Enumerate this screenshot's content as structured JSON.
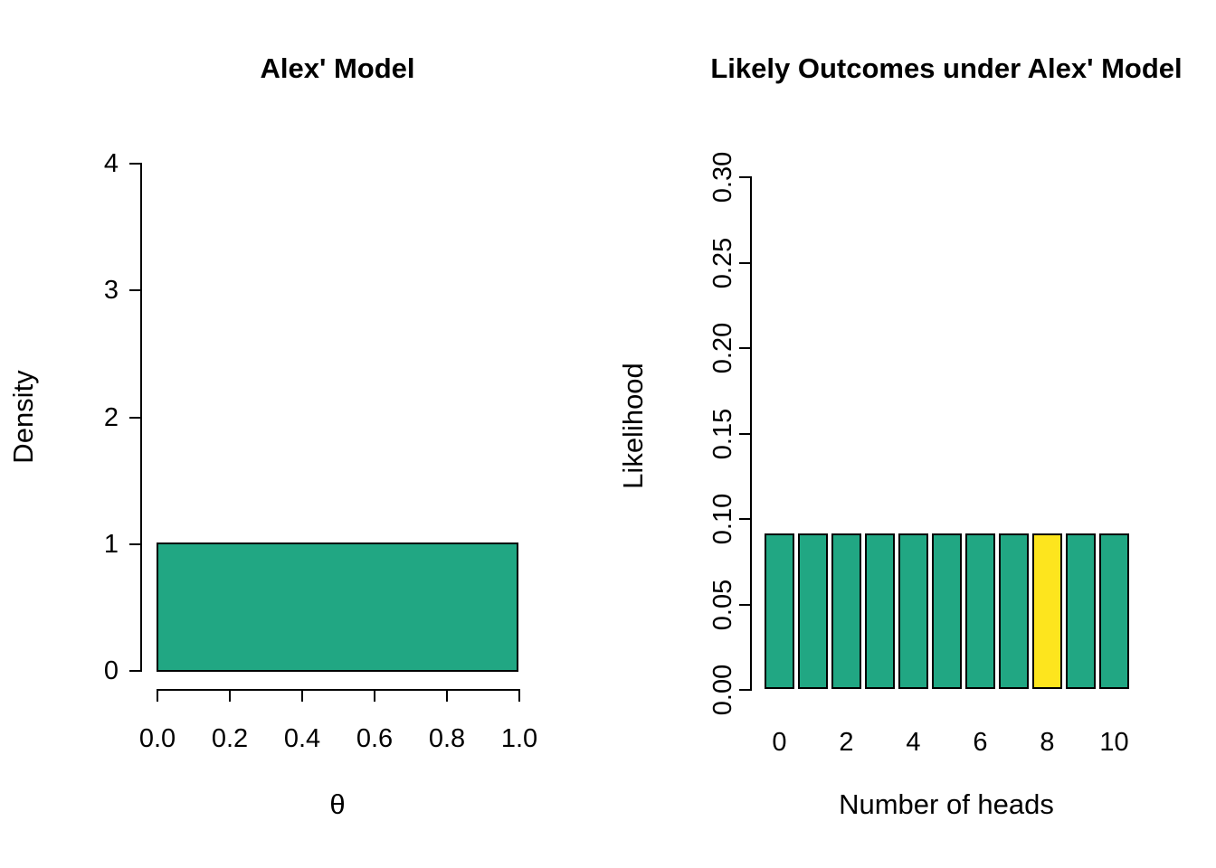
{
  "page_background": "#ffffff",
  "chart_data": [
    {
      "type": "area",
      "title": "Alex' Model",
      "xlabel": "θ",
      "ylabel": "Density",
      "xlim": [
        0.0,
        1.0
      ],
      "ylim": [
        0,
        4
      ],
      "x_ticks": [
        0.0,
        0.2,
        0.4,
        0.6,
        0.8,
        1.0
      ],
      "x_tick_labels": [
        "0.0",
        "0.2",
        "0.4",
        "0.6",
        "0.8",
        "1.0"
      ],
      "y_ticks": [
        0,
        1,
        2,
        3,
        4
      ],
      "y_tick_labels": [
        "0",
        "1",
        "2",
        "3",
        "4"
      ],
      "grid": false,
      "legend": "none",
      "segments": [
        {
          "x0": 0.0,
          "x1": 1.0,
          "y": 1.0
        }
      ],
      "fill_color": "#21A783",
      "border_color": "#000000",
      "description": "Uniform(0,1) prior density: flat at 1 over [0,1]"
    },
    {
      "type": "bar",
      "title": "Likely Outcomes under Alex' Model",
      "xlabel": "Number of heads",
      "ylabel": "Likelihood",
      "categories": [
        0,
        1,
        2,
        3,
        4,
        5,
        6,
        7,
        8,
        9,
        10
      ],
      "values": [
        0.0909,
        0.0909,
        0.0909,
        0.0909,
        0.0909,
        0.0909,
        0.0909,
        0.0909,
        0.0909,
        0.0909,
        0.0909
      ],
      "highlight_index": 8,
      "bar_color": "#21A783",
      "highlight_color": "#FDE51E",
      "border_color": "#000000",
      "ylim": [
        0.0,
        0.3
      ],
      "y_ticks": [
        0.0,
        0.05,
        0.1,
        0.15,
        0.2,
        0.25,
        0.3
      ],
      "y_tick_labels": [
        "0.00",
        "0.05",
        "0.10",
        "0.15",
        "0.20",
        "0.25",
        "0.30"
      ],
      "x_label_ticks": [
        0,
        2,
        4,
        6,
        8,
        10
      ],
      "x_label_tick_labels": [
        "0",
        "2",
        "4",
        "6",
        "8",
        "10"
      ],
      "grid": false,
      "legend": "none"
    }
  ]
}
